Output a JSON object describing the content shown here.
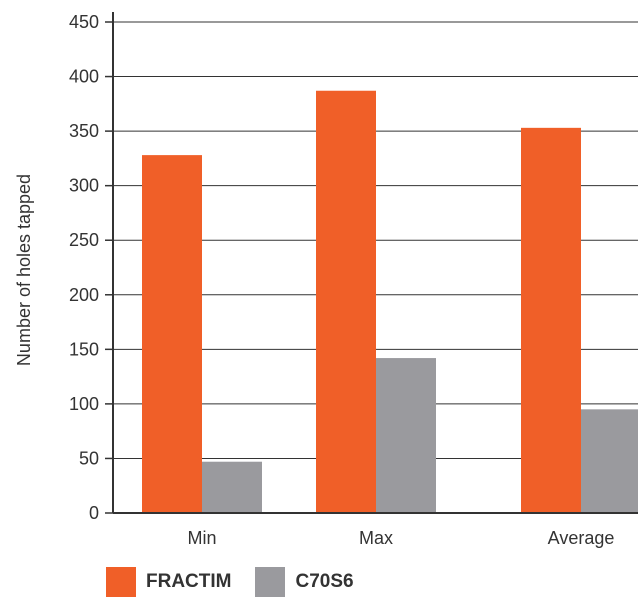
{
  "chart_data": {
    "type": "bar",
    "categories": [
      "Min",
      "Max",
      "Average"
    ],
    "series": [
      {
        "name": "FRACTIM",
        "values": [
          328,
          387,
          353
        ],
        "color": "#f05f28"
      },
      {
        "name": "C70S6",
        "values": [
          47,
          142,
          95
        ],
        "color": "#9a9a9e"
      }
    ],
    "ylabel": "Number of holes tapped",
    "xlabel": "",
    "ylim": [
      0,
      450
    ],
    "yticks": [
      0,
      50,
      100,
      150,
      200,
      250,
      300,
      350,
      400,
      450
    ],
    "grid": true,
    "legend_position": "bottom-left"
  }
}
